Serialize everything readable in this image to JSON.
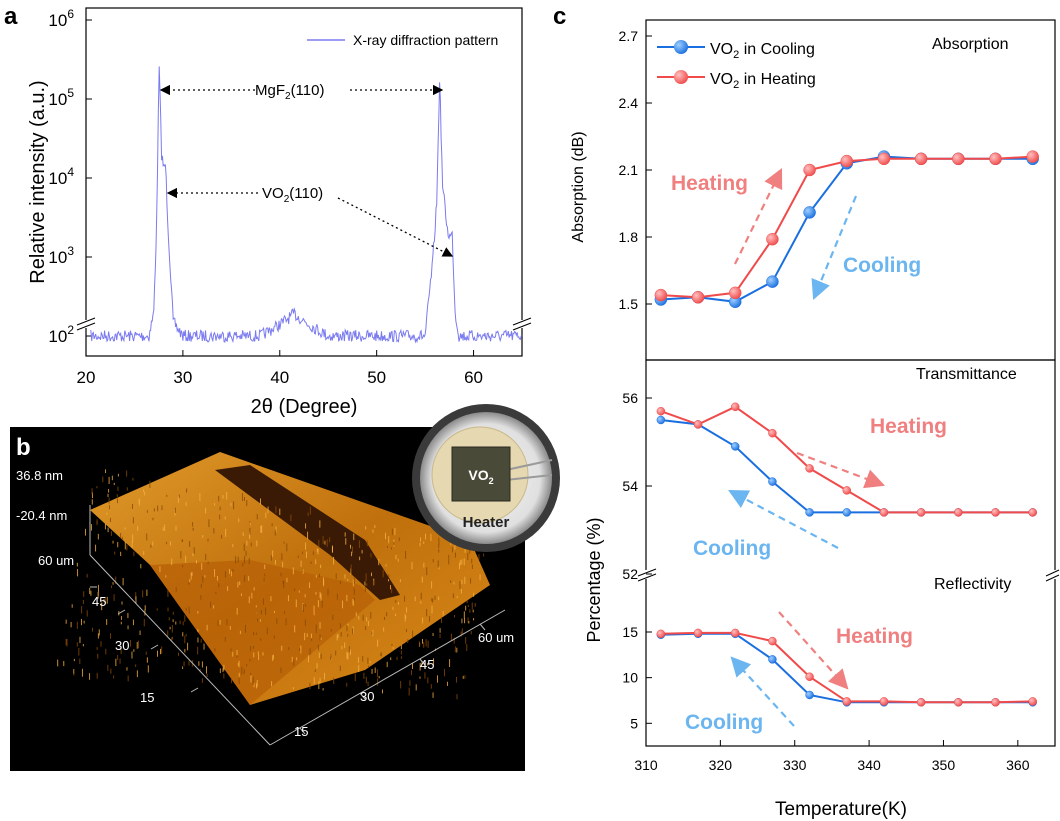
{
  "panel_labels": {
    "a": "a",
    "b": "b",
    "c": "c"
  },
  "colors": {
    "xrd_line": "#7b7bf0",
    "cooling": "#1a6fe0",
    "heating": "#f04a4a",
    "heating_text": "#f08080",
    "cooling_text": "#6bb5f0",
    "afm_background": "#000000",
    "afm_surface": "#c8780e"
  },
  "chart_data": [
    {
      "id": "a",
      "type": "line",
      "xlabel": "2θ (Degree)",
      "ylabel": "Relative intensity (a.u.)",
      "xlim": [
        20,
        65
      ],
      "xticks": [
        "20",
        "30",
        "40",
        "50",
        "60"
      ],
      "yscale": "log",
      "yticks": [
        {
          "base": "10",
          "exp": "2"
        },
        {
          "base": "10",
          "exp": "3"
        },
        {
          "base": "10",
          "exp": "4"
        },
        {
          "base": "10",
          "exp": "5"
        },
        {
          "base": "10",
          "exp": "6"
        }
      ],
      "axis_break": true,
      "legend": {
        "label": "X-ray diffraction pattern",
        "position": "top-right"
      },
      "grid": false,
      "series": [
        {
          "name": "X-ray diffraction pattern",
          "points": [
            [
              20.5,
              100
            ],
            [
              26.5,
              100
            ],
            [
              27.0,
              200
            ],
            [
              27.3,
              3000
            ],
            [
              27.55,
              250000
            ],
            [
              27.8,
              20000
            ],
            [
              28.05,
              13000
            ],
            [
              28.2,
              15000
            ],
            [
              28.5,
              2000
            ],
            [
              29.0,
              150
            ],
            [
              30.0,
              100
            ],
            [
              38.0,
              100
            ],
            [
              40.0,
              140
            ],
            [
              41.5,
              190
            ],
            [
              43.0,
              140
            ],
            [
              45.0,
              100
            ],
            [
              55.0,
              100
            ],
            [
              55.8,
              900
            ],
            [
              56.2,
              5000
            ],
            [
              56.5,
              180000
            ],
            [
              56.8,
              8000
            ],
            [
              57.3,
              2200
            ],
            [
              57.55,
              1800
            ],
            [
              57.8,
              1900
            ],
            [
              58.1,
              200
            ],
            [
              58.5,
              100
            ],
            [
              65.0,
              100
            ]
          ]
        }
      ],
      "annotations": [
        {
          "text": "MgF",
          "sub": "2",
          "after": "(110)"
        },
        {
          "text": "VO",
          "sub": "2",
          "after": "(110)"
        }
      ]
    },
    {
      "id": "c",
      "type": "line",
      "xlabel": "Temperature(K)",
      "xlim": [
        310,
        365
      ],
      "xticks": [
        "310",
        "320",
        "330",
        "340",
        "350",
        "360"
      ],
      "legend": {
        "position": "top-left",
        "entries": [
          {
            "text": "VO",
            "sub": "2",
            "after": " in Cooling",
            "series": "cooling"
          },
          {
            "text": "VO",
            "sub": "2",
            "after": " in Heating",
            "series": "heating"
          }
        ]
      },
      "subplots": [
        {
          "title": "Absorption",
          "ylabel": "Absorption (dB)",
          "ylim": [
            1.3,
            2.75
          ],
          "yticks": [
            "1.5",
            "1.8",
            "2.1",
            "2.4",
            "2.7"
          ],
          "x": [
            312,
            317,
            322,
            327,
            332,
            337,
            342,
            347,
            352,
            357,
            362
          ],
          "series": [
            {
              "name": "VO2 in Cooling",
              "key": "cooling",
              "values": [
                1.52,
                1.53,
                1.51,
                1.6,
                1.91,
                2.13,
                2.16,
                2.15,
                2.15,
                2.15,
                2.15
              ]
            },
            {
              "name": "VO2 in Heating",
              "key": "heating",
              "values": [
                1.54,
                1.53,
                1.55,
                1.79,
                2.1,
                2.14,
                2.15,
                2.15,
                2.15,
                2.15,
                2.16
              ]
            }
          ],
          "labels": [
            "Heating",
            "Cooling"
          ]
        },
        {
          "title": "Transmittance",
          "ylim": [
            52,
            56.4
          ],
          "yticks": [
            "52",
            "54",
            "56"
          ],
          "x": [
            312,
            317,
            322,
            327,
            332,
            337,
            342,
            347,
            352,
            357,
            362
          ],
          "series": [
            {
              "name": "VO2 in Cooling",
              "key": "cooling",
              "values": [
                55.5,
                55.4,
                54.9,
                54.1,
                53.4,
                53.4,
                53.4,
                53.4,
                53.4,
                53.4,
                53.4
              ]
            },
            {
              "name": "VO2 in Heating",
              "key": "heating",
              "values": [
                55.7,
                55.4,
                55.8,
                55.2,
                54.4,
                53.9,
                53.4,
                53.4,
                53.4,
                53.4,
                53.4
              ]
            }
          ],
          "labels": [
            "Heating",
            "Cooling"
          ]
        },
        {
          "title": "Reflectivity",
          "ylim": [
            2,
            18
          ],
          "yticks": [
            "5",
            "10",
            "15"
          ],
          "x": [
            312,
            317,
            322,
            327,
            332,
            337,
            342,
            347,
            352,
            357,
            362
          ],
          "series": [
            {
              "name": "VO2 in Cooling",
              "key": "cooling",
              "values": [
                14.7,
                14.8,
                14.8,
                12.0,
                8.1,
                7.3,
                7.3,
                7.3,
                7.3,
                7.3,
                7.3
              ]
            },
            {
              "name": "VO2 in Heating",
              "key": "heating",
              "values": [
                14.8,
                14.9,
                14.9,
                14.0,
                10.1,
                7.4,
                7.4,
                7.3,
                7.3,
                7.3,
                7.4
              ]
            }
          ],
          "labels": [
            "Heating",
            "Cooling"
          ]
        }
      ],
      "shared_ylabel": "Percentage (%)"
    }
  ],
  "afm_image": {
    "labels": [
      "36.8 nm",
      "-20.4 nm",
      "60 um",
      "45",
      "30",
      "15",
      "60 um",
      "45",
      "30",
      "15"
    ]
  },
  "inset": {
    "chip_label": {
      "text": "VO",
      "sub": "2"
    },
    "heater_label": "Heater"
  }
}
